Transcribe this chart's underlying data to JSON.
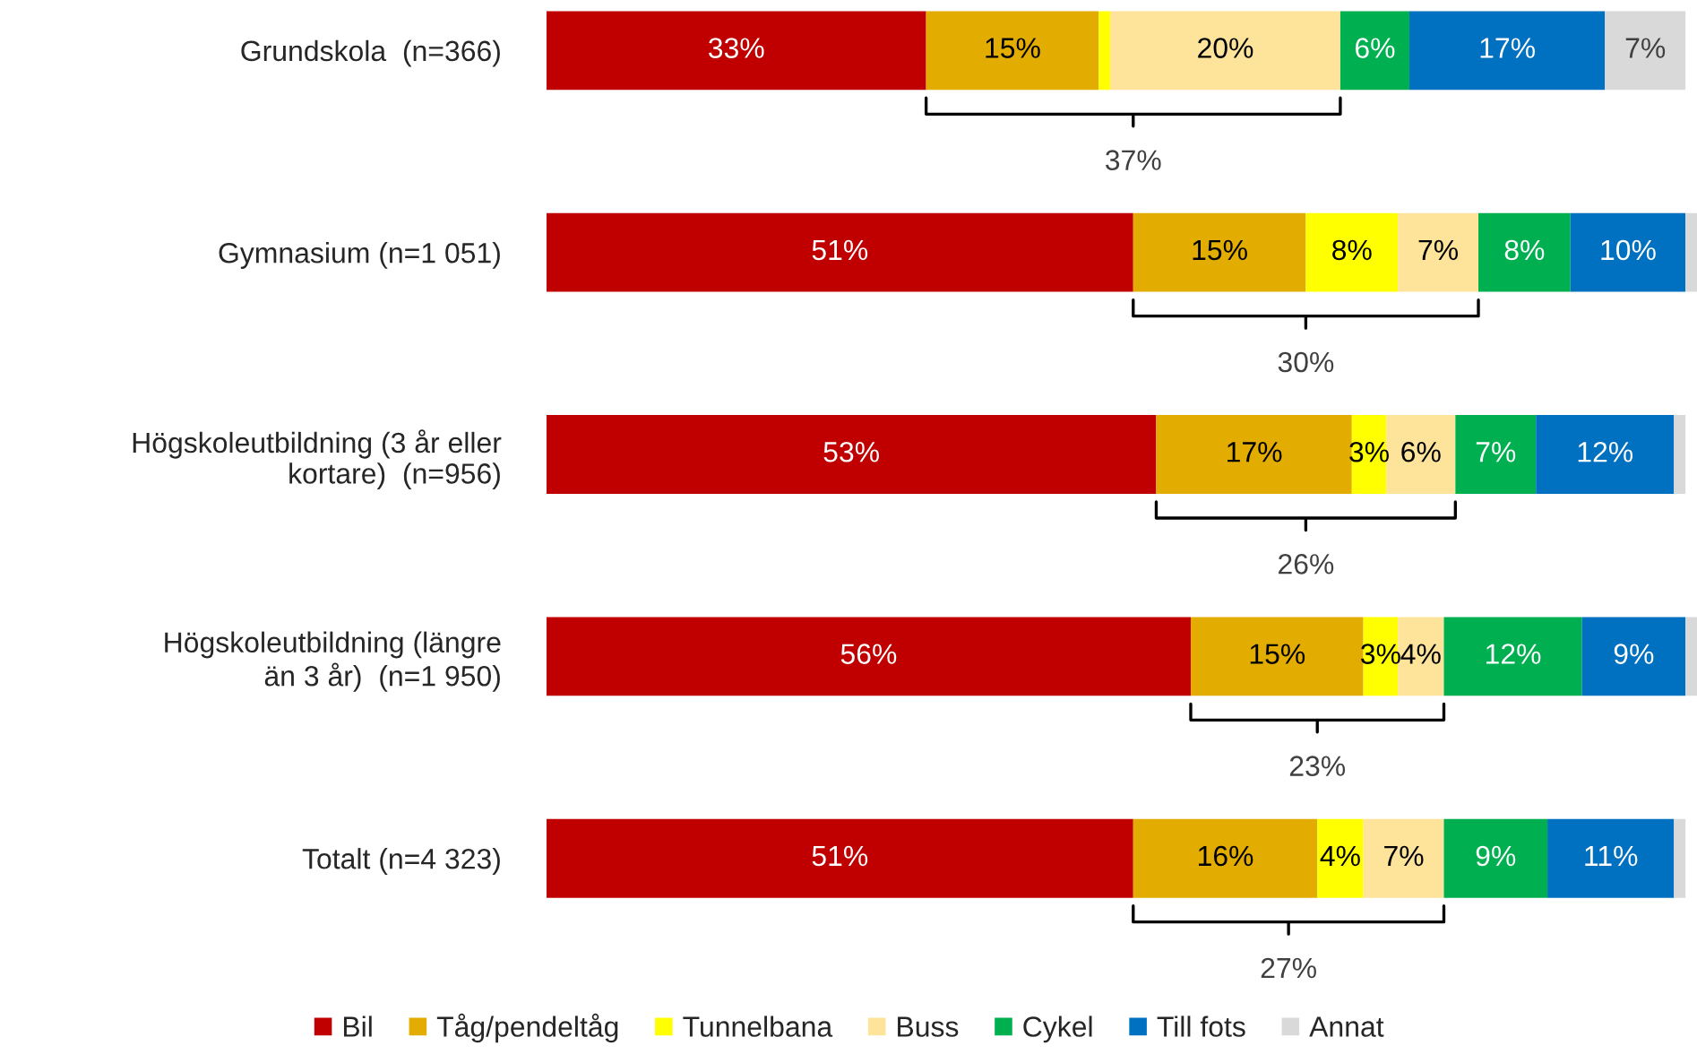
{
  "chart_data": {
    "type": "bar",
    "orientation": "horizontal",
    "stacked": true,
    "categories": [
      "Grundskola  (n=366)",
      "Gymnasium (n=1 051)",
      "Högskoleutbildning (3 år eller\nkortare)  (n=956)",
      "Högskoleutbildning (längre\nän 3 år)  (n=1 950)",
      "Totalt (n=4 323)"
    ],
    "series": [
      {
        "name": "Bil",
        "color": "#c00000",
        "values": [
          33,
          51,
          53,
          56,
          51
        ],
        "value_labels": [
          "33%",
          "51%",
          "53%",
          "56%",
          "51%"
        ]
      },
      {
        "name": "Tåg/pendeltåg",
        "color": "#e3ac00",
        "values": [
          15,
          15,
          17,
          15,
          16
        ],
        "value_labels": [
          "15%",
          "15%",
          "17%",
          "15%",
          "16%"
        ]
      },
      {
        "name": "Tunnelbana",
        "color": "#ffff00",
        "values": [
          1,
          8,
          3,
          3,
          4
        ],
        "value_labels": [
          null,
          "8%",
          "3%",
          "3%",
          "4%"
        ]
      },
      {
        "name": "Buss",
        "color": "#fde49a",
        "values": [
          20,
          7,
          6,
          4,
          7
        ],
        "value_labels": [
          "20%",
          "7%",
          "6%",
          "4%",
          "7%"
        ]
      },
      {
        "name": "Cykel",
        "color": "#00b050",
        "values": [
          6,
          8,
          7,
          12,
          9
        ],
        "value_labels": [
          "6%",
          "8%",
          "7%",
          "12%",
          "9%"
        ]
      },
      {
        "name": "Till fots",
        "color": "#0070c0",
        "values": [
          17,
          10,
          12,
          9,
          11
        ],
        "value_labels": [
          "17%",
          "10%",
          "12%",
          "9%",
          "11%"
        ]
      },
      {
        "name": "Annat",
        "color": "#d9d9d9",
        "values": [
          7,
          1,
          1,
          1,
          1
        ],
        "value_labels": [
          "7%",
          null,
          null,
          null,
          null
        ]
      }
    ],
    "annotations": [
      "37%",
      "30%",
      "26%",
      "23%",
      "27%"
    ],
    "xlim": [
      0,
      100
    ],
    "tick_labels": "y",
    "legend": "bottom",
    "grid": false
  }
}
